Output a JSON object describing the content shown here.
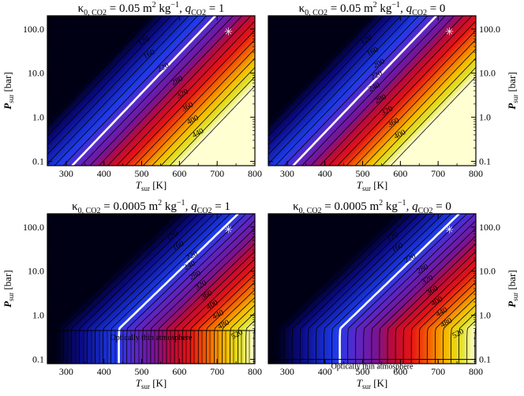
{
  "chart_data": [
    {
      "type": "heatmap",
      "title": {
        "pre": "κ",
        "sub1": "0, CO2",
        "mid": " = 0.05 m",
        "sup1": "2",
        "mid2": " kg",
        "sup2": "−1",
        "mid3": ", ",
        "q": "q",
        "sub2": "CO2",
        "post": " = 1"
      },
      "xlabel": {
        "main": "T",
        "sub": "sur",
        "post": " [K]"
      },
      "ylabel": {
        "main": "P",
        "sub": "sur",
        "post": " [bar]"
      },
      "xlim": [
        250,
        800
      ],
      "ylim": [
        0.08,
        200
      ],
      "ylog": true,
      "xticks": [
        "300",
        "400",
        "500",
        "600",
        "700",
        "800"
      ],
      "yticks": [
        "0.1",
        "1.0",
        "10.0",
        "100.0"
      ],
      "ylabel_side": "left",
      "min_flux_K": 70,
      "max_flux_K": 460,
      "regime": "thick",
      "contour_labels": [
        "120",
        "160",
        "220",
        "280",
        "320",
        "360",
        "400",
        "440"
      ],
      "white_contour": 220,
      "marker": {
        "x": 730,
        "y": 90,
        "symbol": "✳"
      },
      "thin_band": null
    },
    {
      "type": "heatmap",
      "title": {
        "pre": "κ",
        "sub1": "0, CO2",
        "mid": " = 0.05 m",
        "sup1": "2",
        "mid2": " kg",
        "sup2": "−1",
        "mid3": ", ",
        "q": "q",
        "sub2": "CO2",
        "post": " = 0"
      },
      "xlabel": {
        "main": "T",
        "sub": "sur",
        "post": " [K]"
      },
      "ylabel": {
        "main": "P",
        "sub": "sur",
        "post": " [bar]"
      },
      "xlim": [
        250,
        800
      ],
      "ylim": [
        0.08,
        200
      ],
      "ylog": true,
      "xticks": [
        "300",
        "400",
        "500",
        "600",
        "700",
        "800"
      ],
      "yticks": [
        "0.1",
        "1.0",
        "10.0",
        "100.0"
      ],
      "ylabel_side": "right",
      "min_flux_K": 70,
      "max_flux_K": 440,
      "regime": "thick",
      "contour_labels": [
        "120",
        "160",
        "200",
        "220",
        "240",
        "280",
        "320",
        "360",
        "400"
      ],
      "white_contour": 220,
      "marker": {
        "x": 730,
        "y": 90,
        "symbol": "✳"
      },
      "thin_band": null
    },
    {
      "type": "heatmap",
      "title": {
        "pre": "κ",
        "sub1": "0, CO2",
        "mid": " = 0.0005 m",
        "sup1": "2",
        "mid2": " kg",
        "sup2": "−1",
        "mid3": ", ",
        "q": "q",
        "sub2": "CO2",
        "post": " = 1"
      },
      "xlabel": {
        "main": "T",
        "sub": "sur",
        "post": " [K]"
      },
      "ylabel": {
        "main": "P",
        "sub": "sur",
        "post": " [bar]"
      },
      "xlim": [
        250,
        800
      ],
      "ylim": [
        0.08,
        200
      ],
      "ylog": true,
      "xticks": [
        "300",
        "400",
        "500",
        "600",
        "700",
        "800"
      ],
      "yticks": [
        "0.1",
        "1.0",
        "10.0",
        "100.0"
      ],
      "ylabel_side": "left",
      "min_flux_K": 60,
      "max_flux_K": 560,
      "regime": "thin",
      "contour_labels": [
        "120",
        "160",
        "220",
        "240",
        "280",
        "320",
        "360",
        "400",
        "440",
        "480",
        "520"
      ],
      "white_contour": 220,
      "marker": {
        "x": 730,
        "y": 90,
        "symbol": "✳"
      },
      "thin_band": {
        "label": "Optically thin atmosphere",
        "p_top": 0.45,
        "hatched": true
      }
    },
    {
      "type": "heatmap",
      "title": {
        "pre": "κ",
        "sub1": "0, CO2",
        "mid": " = 0.0005 m",
        "sup1": "2",
        "mid2": " kg",
        "sup2": "−1",
        "mid3": ", ",
        "q": "q",
        "sub2": "CO2",
        "post": " = 0"
      },
      "xlabel": {
        "main": "T",
        "sub": "sur",
        "post": " [K]"
      },
      "ylabel": {
        "main": "P",
        "sub": "sur",
        "post": " [bar]"
      },
      "xlim": [
        250,
        800
      ],
      "ylim": [
        0.08,
        200
      ],
      "ylog": true,
      "xticks": [
        "300",
        "400",
        "500",
        "600",
        "700",
        "800"
      ],
      "yticks": [
        "0.1",
        "1.0",
        "10.0",
        "100.0"
      ],
      "ylabel_side": "right",
      "min_flux_K": 60,
      "max_flux_K": 560,
      "regime": "thin",
      "contour_labels": [
        "120",
        "160",
        "220",
        "280",
        "320",
        "360",
        "400",
        "440",
        "480",
        "520"
      ],
      "white_contour": 220,
      "marker": {
        "x": 730,
        "y": 90,
        "symbol": "✳"
      },
      "thin_band": {
        "label": "Optically thin atmosphere",
        "p_top": 0.1,
        "hatched": false
      }
    }
  ]
}
